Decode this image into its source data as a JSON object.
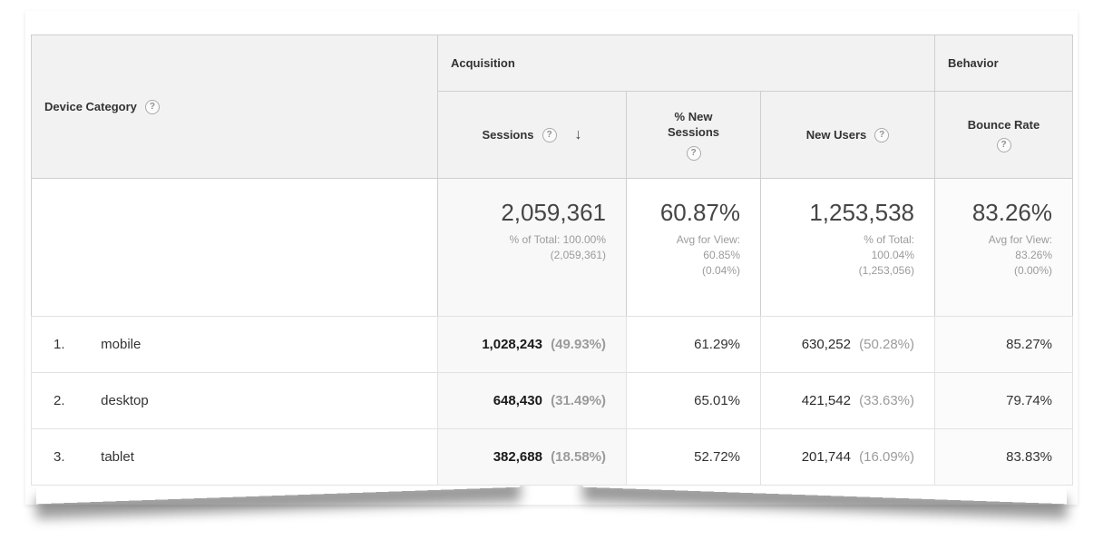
{
  "ui": {
    "help_glyph": "?",
    "sort_arrow": "↓"
  },
  "header": {
    "row_dimension": "Device Category",
    "group_acquisition": "Acquisition",
    "group_behavior": "Behavior",
    "col_sessions": "Sessions",
    "col_pct_new_sessions": "% New Sessions",
    "col_new_users": "New Users",
    "col_bounce_rate": "Bounce Rate"
  },
  "totals": {
    "sessions": {
      "value": "2,059,361",
      "line1": "% of Total: 100.00%",
      "line2": "(2,059,361)"
    },
    "pct_new_sessions": {
      "value": "60.87%",
      "line1": "Avg for View:",
      "line2": "60.85%",
      "line3": "(0.04%)"
    },
    "new_users": {
      "value": "1,253,538",
      "line1": "% of Total:",
      "line2": "100.04%",
      "line3": "(1,253,056)"
    },
    "bounce_rate": {
      "value": "83.26%",
      "line1": "Avg for View:",
      "line2": "83.26%",
      "line3": "(0.00%)"
    }
  },
  "rows": [
    {
      "index": "1.",
      "label": "mobile",
      "sessions": "1,028,243",
      "sessions_pct": "(49.93%)",
      "pct_new_sessions": "61.29%",
      "new_users": "630,252",
      "new_users_pct": "(50.28%)",
      "bounce_rate": "85.27%"
    },
    {
      "index": "2.",
      "label": "desktop",
      "sessions": "648,430",
      "sessions_pct": "(31.49%)",
      "pct_new_sessions": "65.01%",
      "new_users": "421,542",
      "new_users_pct": "(33.63%)",
      "bounce_rate": "79.74%"
    },
    {
      "index": "3.",
      "label": "tablet",
      "sessions": "382,688",
      "sessions_pct": "(18.58%)",
      "pct_new_sessions": "52.72%",
      "new_users": "201,744",
      "new_users_pct": "(16.09%)",
      "bounce_rate": "83.83%"
    }
  ],
  "colors": {
    "header_bg": "#f2f2f2",
    "border": "#cfcfcf",
    "text": "#333333",
    "muted": "#9b9b9b"
  }
}
